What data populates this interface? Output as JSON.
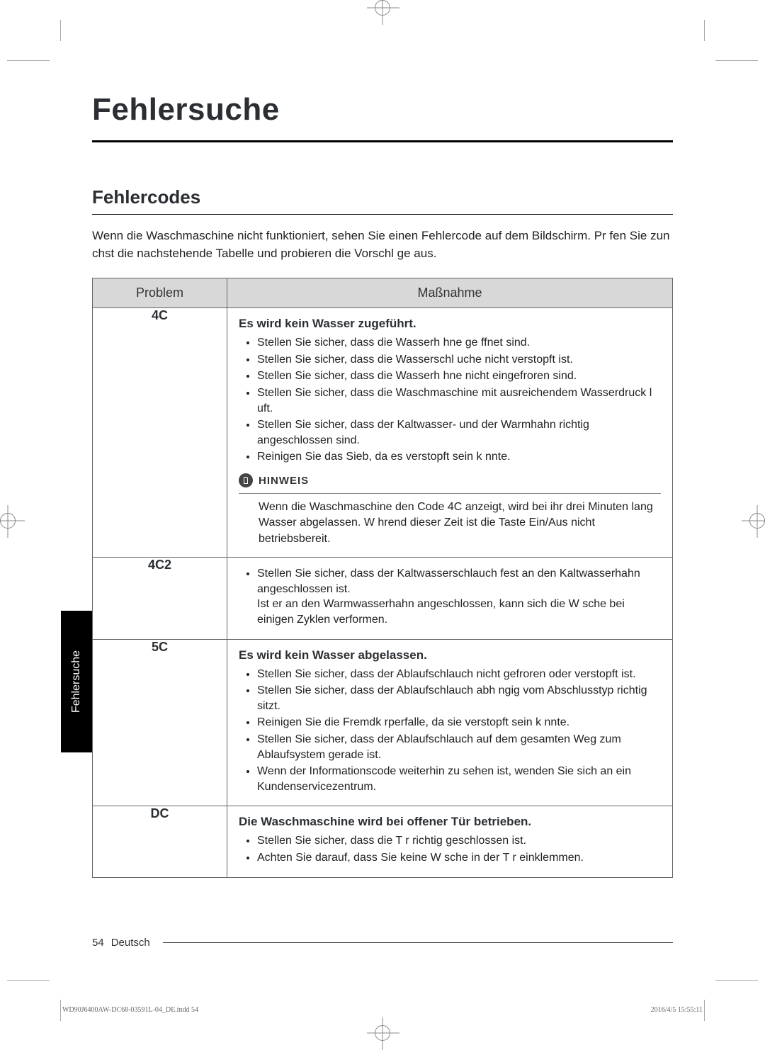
{
  "page": {
    "title": "Fehlersuche",
    "section": "Fehlercodes",
    "intro": "Wenn die Waschmaschine nicht funktioniert, sehen Sie einen Fehlercode auf dem Bildschirm. Pr fen Sie zun chst die nachstehende Tabelle und probieren die Vorschl ge aus.",
    "sideTab": "Fehlersuche",
    "footer": {
      "pageNumber": "54",
      "language": "Deutsch"
    },
    "imprint": {
      "left": "WD90J6400AW-DC68-03591L-04_DE.indd   54",
      "right": "2016/4/5   15:55:11"
    }
  },
  "table": {
    "headers": {
      "problem": "Problem",
      "action": "Maßnahme"
    },
    "rows": [
      {
        "code": "4C",
        "title": "Es wird kein Wasser zugeführt.",
        "items": [
          "Stellen Sie sicher, dass die Wasserh hne ge ffnet sind.",
          "Stellen Sie sicher, dass die Wasserschl uche nicht verstopft ist.",
          "Stellen Sie sicher, dass die Wasserh hne nicht eingefroren sind.",
          "Stellen Sie sicher, dass die Waschmaschine mit ausreichendem Wasserdruck l uft.",
          "Stellen Sie sicher, dass der Kaltwasser- und der Warmhahn richtig angeschlossen sind.",
          "Reinigen Sie das Sieb, da es verstopft sein k nnte."
        ],
        "note": {
          "label": "HINWEIS",
          "text": "Wenn die Waschmaschine den Code  4C  anzeigt, wird bei ihr drei Minuten lang Wasser abgelassen. W hrend dieser Zeit ist die Taste Ein/Aus nicht betriebsbereit."
        }
      },
      {
        "code": "4C2",
        "items": [
          "Stellen Sie sicher, dass der Kaltwasserschlauch fest an den Kaltwasserhahn angeschlossen ist.\nIst er an den Warmwasserhahn angeschlossen, kann sich die W sche bei einigen Zyklen verformen."
        ]
      },
      {
        "code": "5C",
        "title": "Es wird kein Wasser abgelassen.",
        "items": [
          "Stellen Sie sicher, dass der Ablaufschlauch nicht gefroren oder verstopft ist.",
          "Stellen Sie sicher, dass der Ablaufschlauch abh ngig vom Abschlusstyp richtig sitzt.",
          "Reinigen Sie die Fremdk rperfalle, da sie verstopft sein k nnte.",
          "Stellen Sie sicher, dass der Ablaufschlauch auf dem gesamten Weg zum Ablaufsystem gerade ist.",
          "Wenn der Informationscode weiterhin zu sehen ist, wenden Sie sich an ein Kundenservicezentrum."
        ]
      },
      {
        "code": "DC",
        "title": "Die Waschmaschine wird bei offener Tür betrieben.",
        "items": [
          "Stellen Sie sicher, dass die T r richtig geschlossen ist.",
          "Achten Sie darauf, dass Sie keine W sche in der T r einklemmen."
        ]
      }
    ]
  }
}
